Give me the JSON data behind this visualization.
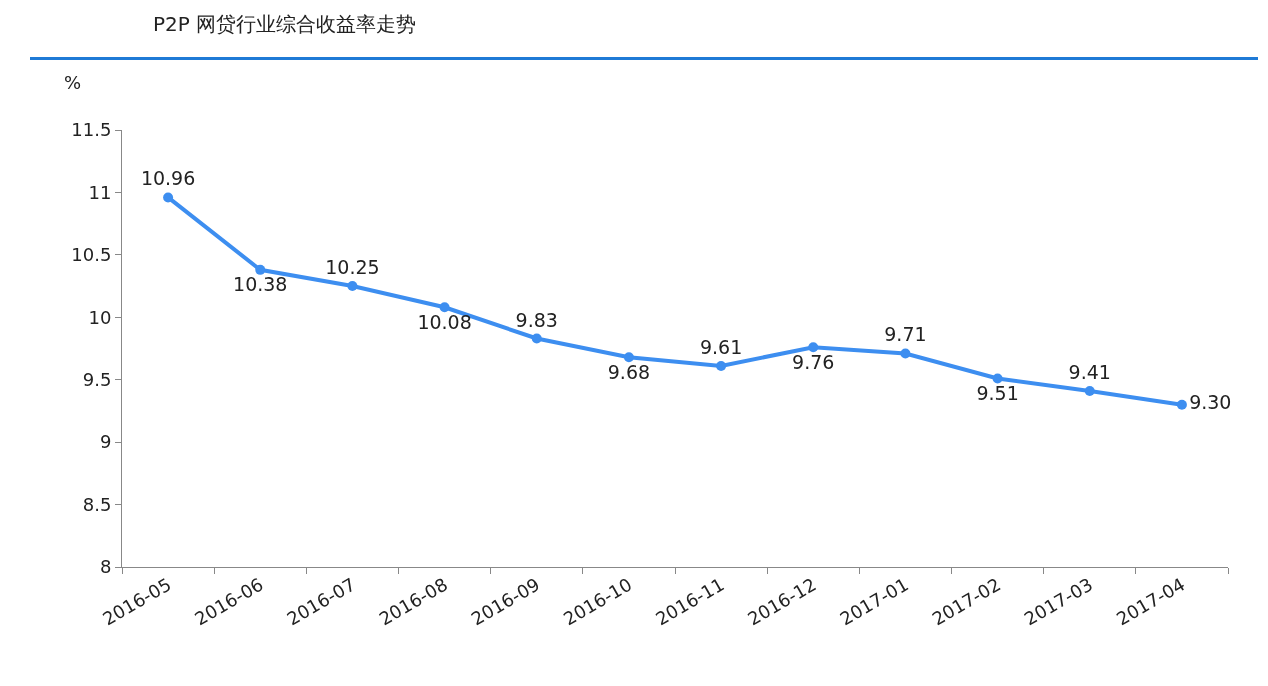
{
  "chart_data": {
    "type": "line",
    "title": "P2P 网贷行业综合收益率走势",
    "ylabel": "%",
    "categories": [
      "2016-05",
      "2016-06",
      "2016-07",
      "2016-08",
      "2016-09",
      "2016-10",
      "2016-11",
      "2016-12",
      "2017-01",
      "2017-02",
      "2017-03",
      "2017-04"
    ],
    "series": [
      {
        "color": "#3d8ef0",
        "values": [
          10.96,
          10.38,
          10.25,
          10.08,
          9.83,
          9.68,
          9.61,
          9.76,
          9.71,
          9.51,
          9.41,
          9.3
        ],
        "value_labels": [
          "10.96",
          "10.38",
          "10.25",
          "10.08",
          "9.83",
          "9.68",
          "9.61",
          "9.76",
          "9.71",
          "9.51",
          "9.41",
          "9.30"
        ]
      }
    ],
    "ylim": [
      8,
      11.5
    ],
    "yticks": [
      8,
      8.5,
      9,
      9.5,
      10,
      10.5,
      11,
      11.5
    ],
    "grid": false,
    "marker": "circle",
    "line_style": "solid"
  }
}
